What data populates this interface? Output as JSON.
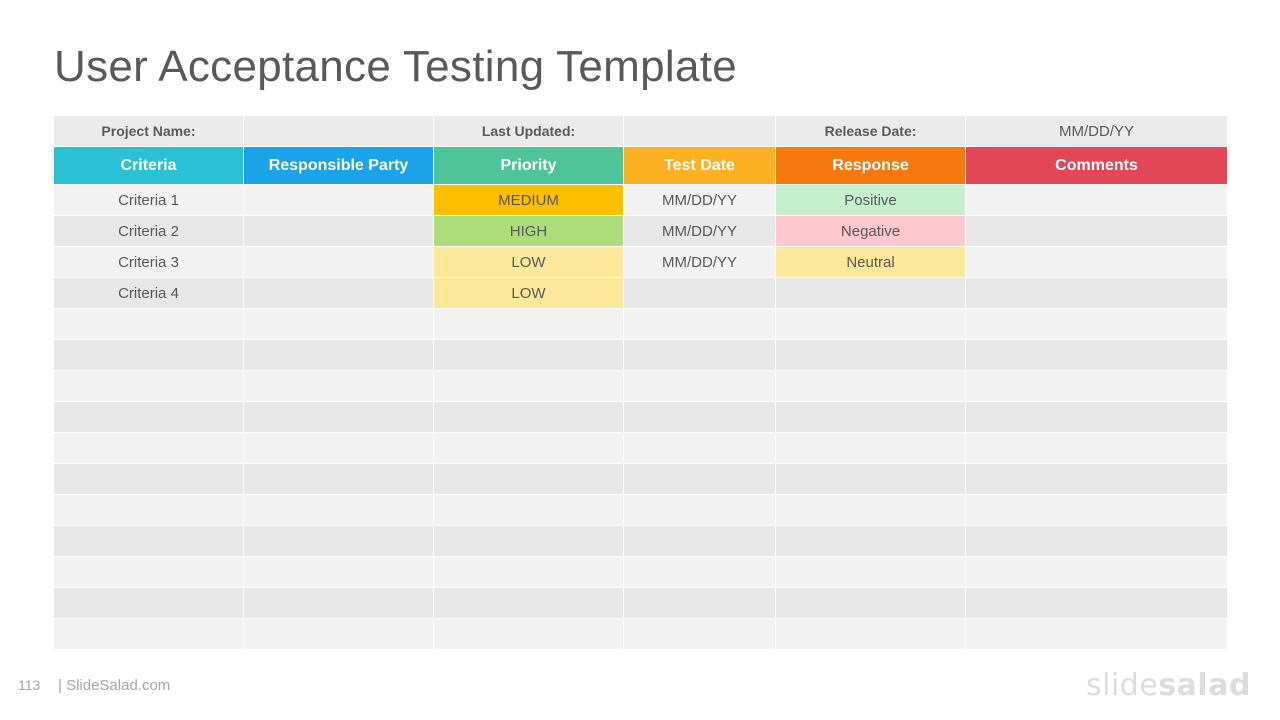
{
  "title": "User Acceptance Testing Template",
  "meta": {
    "project_name_label": "Project Name:",
    "project_name_value": "",
    "last_updated_label": "Last Updated:",
    "last_updated_value": "",
    "release_date_label": "Release Date:",
    "release_date_value": "MM/DD/YY"
  },
  "columns": [
    {
      "label": "Criteria",
      "color": "#2bc1d4"
    },
    {
      "label": "Responsible Party",
      "color": "#1aa3e8"
    },
    {
      "label": "Priority",
      "color": "#4dc49a"
    },
    {
      "label": "Test Date",
      "color": "#fbb122"
    },
    {
      "label": "Response",
      "color": "#f7780f"
    },
    {
      "label": "Comments",
      "color": "#e24657"
    }
  ],
  "rows": [
    {
      "criteria": "Criteria 1",
      "party": "",
      "priority": "MEDIUM",
      "test_date": "MM/DD/YY",
      "response": "Positive",
      "comments": ""
    },
    {
      "criteria": "Criteria 2",
      "party": "",
      "priority": "HIGH",
      "test_date": "MM/DD/YY",
      "response": "Negative",
      "comments": ""
    },
    {
      "criteria": "Criteria 3",
      "party": "",
      "priority": "LOW",
      "test_date": "MM/DD/YY",
      "response": "Neutral",
      "comments": ""
    },
    {
      "criteria": "Criteria 4",
      "party": "",
      "priority": "LOW",
      "test_date": "",
      "response": "",
      "comments": ""
    }
  ],
  "empty_rows": 11,
  "priority_colors": {
    "MEDIUM": "#fbbf00",
    "HIGH": "#addc7a",
    "LOW": "#fde79b"
  },
  "response_colors": {
    "Positive": "#c6efce",
    "Negative": "#ffc7ce",
    "Neutral": "#fde79b"
  },
  "footer": {
    "page_number": "113",
    "site": "| SlideSalad.com",
    "logo_part1": "slide",
    "logo_part2": "salad"
  }
}
